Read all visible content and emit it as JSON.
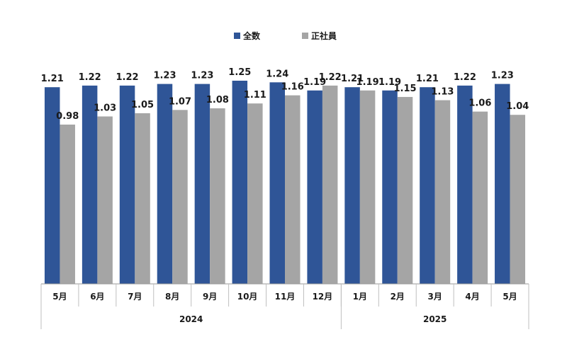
{
  "chart_data": {
    "type": "bar",
    "categories": [
      "5月",
      "6月",
      "7月",
      "8月",
      "9月",
      "10月",
      "11月",
      "12月",
      "1月",
      "2月",
      "3月",
      "4月",
      "5月"
    ],
    "year_groups": [
      {
        "label": "2024",
        "count": 8
      },
      {
        "label": "2025",
        "count": 5
      }
    ],
    "series": [
      {
        "name": "全数",
        "color": "#2f5597",
        "values": [
          1.21,
          1.22,
          1.22,
          1.23,
          1.23,
          1.25,
          1.24,
          1.19,
          1.21,
          1.19,
          1.21,
          1.22,
          1.23
        ],
        "labels": [
          "1.21",
          "1.22",
          "1.22",
          "1.23",
          "1.23",
          "1.25",
          "1.24",
          "1.19",
          "1.21",
          "1.19",
          "1.21",
          "1.22",
          "1.23"
        ]
      },
      {
        "name": "正社員",
        "color": "#a5a5a5",
        "values": [
          0.98,
          1.03,
          1.05,
          1.07,
          1.08,
          1.11,
          1.16,
          1.22,
          1.19,
          1.15,
          1.13,
          1.06,
          1.04
        ],
        "labels": [
          "0.98",
          "1.03",
          "1.05",
          "1.07",
          "1.08",
          "1.11",
          "1.16",
          "1.22",
          "1.19",
          "1.15",
          "1.13",
          "1.06",
          "1.04"
        ]
      }
    ],
    "ylim": [
      0,
      1.25
    ],
    "grid": false,
    "legend_position": "top-center",
    "show_data_labels": true
  }
}
